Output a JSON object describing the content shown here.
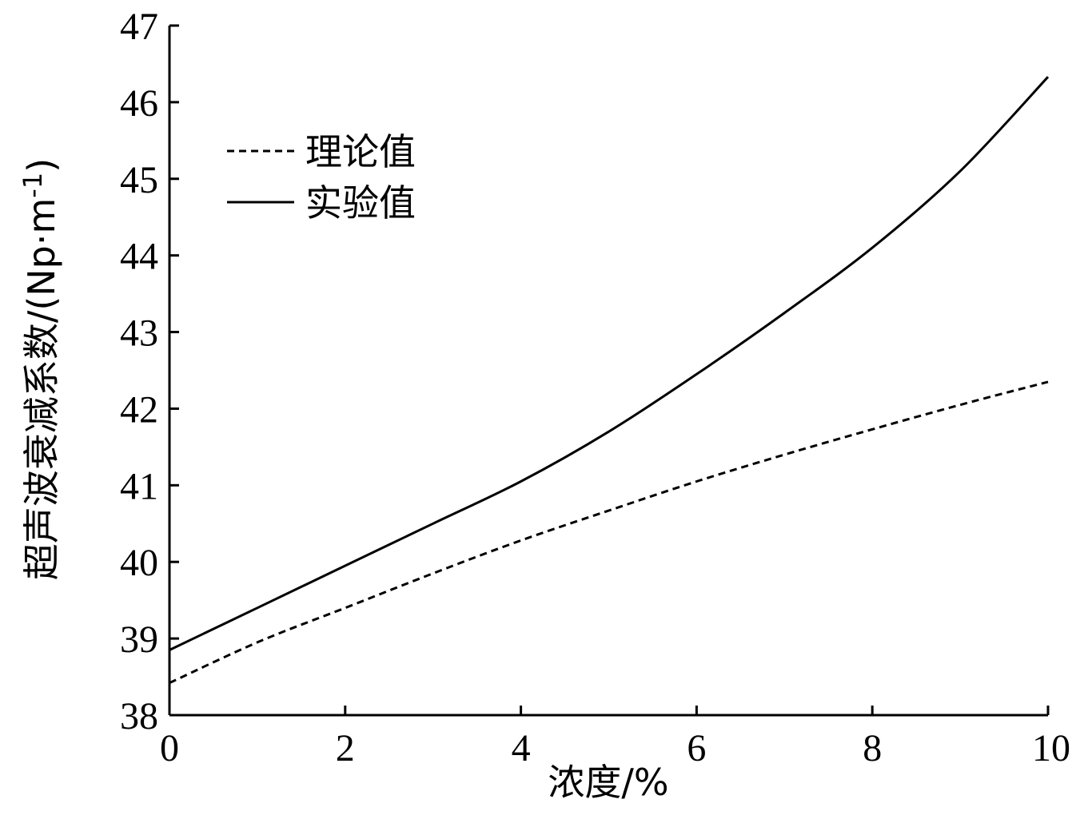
{
  "chart_data": {
    "type": "line",
    "title": "",
    "xlabel": "浓度/%",
    "ylabel_text": "超声波衰减系数/(Np·m",
    "ylabel_sup": "-1",
    "ylabel_close": ")",
    "xlim": [
      0,
      10
    ],
    "ylim": [
      38,
      47
    ],
    "xticks": [
      "0",
      "2",
      "4",
      "6",
      "8",
      "10"
    ],
    "yticks": [
      "38",
      "39",
      "40",
      "41",
      "42",
      "43",
      "44",
      "45",
      "46",
      "47"
    ],
    "grid": false,
    "legend_position": "top-left",
    "series": [
      {
        "name": "理论值",
        "style": "dashed",
        "color": "#000000",
        "x": [
          0,
          1,
          2,
          3,
          4,
          5,
          6,
          7,
          8,
          9,
          10
        ],
        "y": [
          38.42,
          38.95,
          39.4,
          39.85,
          40.28,
          40.67,
          41.05,
          41.4,
          41.73,
          42.05,
          42.35
        ]
      },
      {
        "name": "实验值",
        "style": "solid",
        "color": "#000000",
        "x": [
          0,
          1,
          2,
          3,
          4,
          5,
          6,
          7,
          8,
          9,
          10
        ],
        "y": [
          38.85,
          39.4,
          39.95,
          40.5,
          41.05,
          41.7,
          42.45,
          43.25,
          44.1,
          45.1,
          46.33
        ]
      }
    ]
  }
}
